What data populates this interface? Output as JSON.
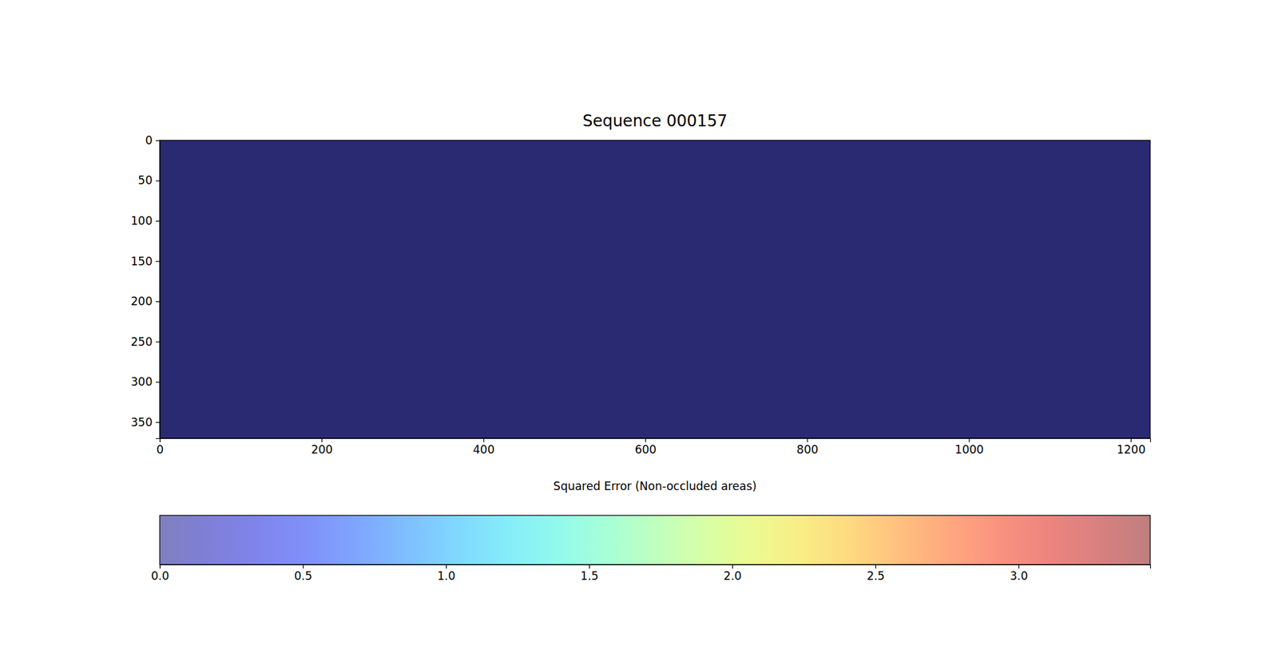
{
  "chart_data": {
    "type": "heatmap",
    "title": "Sequence 000157",
    "x_label": "Squared Error (Non-occluded areas)",
    "xlim": [
      0,
      1224
    ],
    "ylim": [
      370,
      0
    ],
    "xticks": [
      0,
      200,
      400,
      600,
      800,
      1000,
      1200
    ],
    "yticks": [
      0,
      50,
      100,
      150,
      200,
      250,
      300,
      350
    ],
    "x_edges": [
      0,
      204,
      408,
      612,
      816,
      1020,
      1224
    ],
    "y_edges": [
      0,
      74,
      148,
      222,
      296,
      370
    ],
    "z": [
      [
        0,
        0,
        0,
        0,
        0,
        0
      ],
      [
        0,
        0,
        0,
        0,
        0,
        0
      ],
      [
        0,
        0,
        0,
        0,
        0,
        0
      ],
      [
        0,
        0,
        0,
        0,
        0,
        0
      ],
      [
        0,
        0,
        0,
        0,
        0,
        0
      ]
    ],
    "colorbar_range": [
      0,
      3.46
    ],
    "colorbar_ticks": [
      {
        "value": 0,
        "label": "0.0"
      },
      {
        "value": 0.5,
        "label": "0.5"
      },
      {
        "value": 1,
        "label": "1.0"
      },
      {
        "value": 1.5,
        "label": "1.5"
      },
      {
        "value": 2,
        "label": "2.0"
      },
      {
        "value": 2.5,
        "label": "2.5"
      },
      {
        "value": 3,
        "label": "3.0"
      }
    ]
  }
}
